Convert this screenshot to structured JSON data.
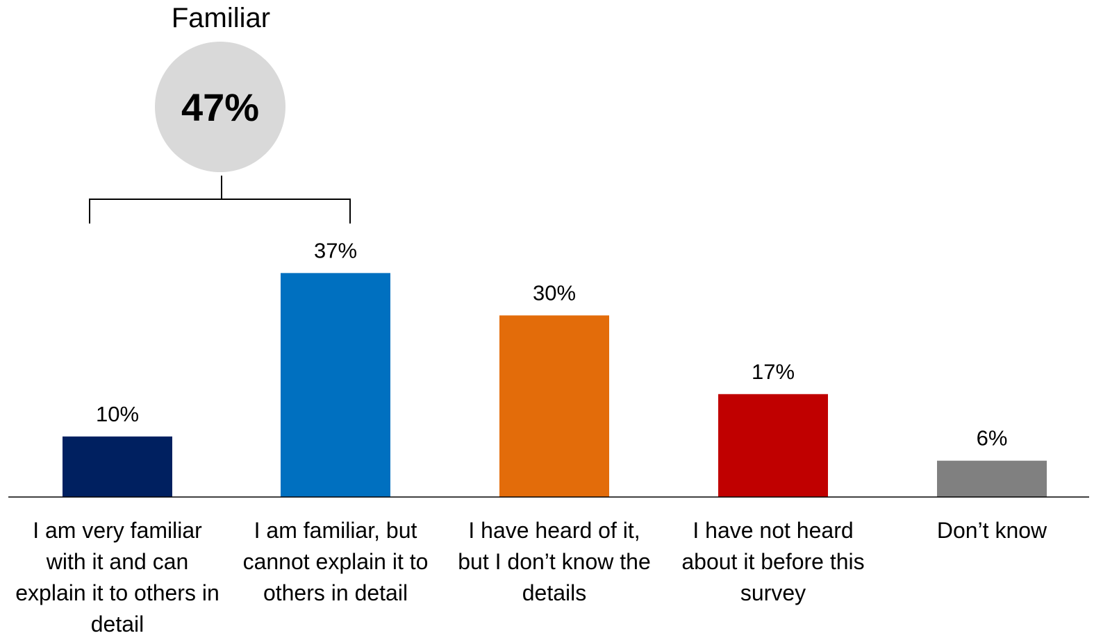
{
  "summary": {
    "title": "Familiar",
    "value": "47%"
  },
  "chart_data": {
    "type": "bar",
    "categories": [
      "I am very familiar with it and can explain it to others in detail",
      "I am familiar, but cannot explain it to others in detail",
      "I have heard of it, but I don’t know the details",
      "I have not heard about it before this survey",
      "Don’t know"
    ],
    "values": [
      10,
      37,
      30,
      17,
      6
    ],
    "data_labels": [
      "10%",
      "37%",
      "30%",
      "17%",
      "6%"
    ],
    "colors": [
      "#002060",
      "#0070C0",
      "#E36C0A",
      "#C00000",
      "#808080"
    ],
    "ylim": [
      0,
      40
    ],
    "grid": false,
    "legend": "none"
  }
}
